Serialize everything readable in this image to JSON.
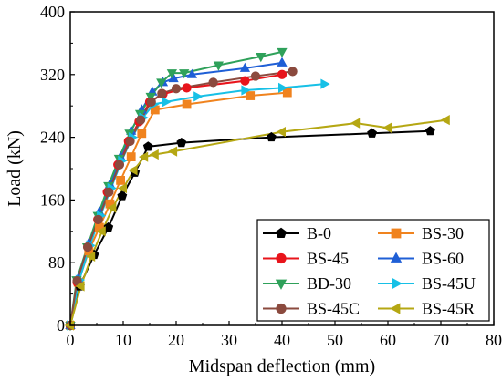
{
  "chart_data": {
    "type": "line",
    "xlabel": "Midspan deflection (mm)",
    "ylabel": "Load (kN)",
    "xlim": [
      0,
      80
    ],
    "ylim": [
      0,
      400
    ],
    "xticks": [
      0,
      10,
      20,
      30,
      40,
      50,
      60,
      70,
      80
    ],
    "yticks": [
      0,
      80,
      160,
      240,
      320,
      400
    ],
    "grid": false,
    "legend": "bottom-right, two columns",
    "series": [
      {
        "name": "B-0",
        "color": "#000000",
        "marker": "pentagon",
        "x": [
          0,
          1.8,
          4.5,
          7.2,
          9.8,
          12.2,
          14.7,
          21,
          38,
          57,
          68
        ],
        "y": [
          0,
          50,
          90,
          125,
          165,
          195,
          228,
          233,
          240,
          245,
          248
        ]
      },
      {
        "name": "BS-30",
        "color": "#f0831e",
        "marker": "square",
        "x": [
          0,
          1.5,
          3.5,
          5.5,
          7.5,
          9.5,
          11.5,
          13.5,
          16,
          22,
          34,
          41
        ],
        "y": [
          0,
          55,
          95,
          125,
          155,
          185,
          215,
          245,
          275,
          282,
          293,
          297
        ]
      },
      {
        "name": "BS-45",
        "color": "#e8141b",
        "marker": "circle",
        "x": [
          0,
          1.3,
          3.3,
          5.2,
          7.0,
          9.0,
          11.0,
          13.0,
          15.0,
          17.5,
          22,
          33,
          40
        ],
        "y": [
          0,
          55,
          100,
          135,
          170,
          205,
          235,
          260,
          285,
          295,
          303,
          312,
          320
        ]
      },
      {
        "name": "BS-60",
        "color": "#1f5fd6",
        "marker": "triangle-up",
        "x": [
          0,
          1.5,
          3.5,
          5.5,
          7.5,
          9.5,
          11.5,
          13.5,
          15.5,
          17.5,
          19.5,
          23,
          33,
          40
        ],
        "y": [
          0,
          60,
          105,
          145,
          180,
          215,
          248,
          275,
          298,
          310,
          315,
          320,
          328,
          335
        ]
      },
      {
        "name": "BD-30",
        "color": "#2fa15a",
        "marker": "triangle-down",
        "x": [
          0,
          1.2,
          3.2,
          5.2,
          7.2,
          9.2,
          11.2,
          13.2,
          15.2,
          17.2,
          19.2,
          21.5,
          28,
          36,
          40
        ],
        "y": [
          0,
          58,
          100,
          140,
          178,
          213,
          245,
          270,
          292,
          310,
          322,
          322,
          332,
          343,
          349
        ]
      },
      {
        "name": "BS-45U",
        "color": "#17c0e6",
        "marker": "triangle-right",
        "x": [
          0,
          1.7,
          3.7,
          5.7,
          7.7,
          9.7,
          11.7,
          13.7,
          15.7,
          18,
          24,
          33,
          40,
          48
        ],
        "y": [
          0,
          58,
          102,
          140,
          175,
          210,
          240,
          265,
          282,
          285,
          292,
          300,
          303,
          308
        ]
      },
      {
        "name": "BS-45C",
        "color": "#8b4a3e",
        "marker": "circle",
        "x": [
          0,
          1.3,
          3.3,
          5.3,
          7.3,
          9.3,
          11.3,
          13.3,
          15.3,
          17.3,
          20,
          27,
          35,
          42
        ],
        "y": [
          0,
          57,
          100,
          135,
          170,
          205,
          235,
          262,
          285,
          296,
          302,
          310,
          318,
          324
        ]
      },
      {
        "name": "BS-45R",
        "color": "#b5a713",
        "marker": "triangle-left",
        "x": [
          0,
          2.0,
          4.0,
          6.0,
          8.0,
          10.0,
          12.0,
          14.0,
          16.0,
          19.5,
          40,
          54,
          60,
          71
        ],
        "y": [
          0,
          50,
          88,
          120,
          150,
          175,
          198,
          215,
          218,
          222,
          247,
          258,
          252,
          262
        ]
      }
    ]
  },
  "legend_layout": {
    "col1": [
      "B-0",
      "BS-45",
      "BD-30",
      "BS-45C"
    ],
    "col2": [
      "BS-30",
      "BS-60",
      "BS-45U",
      "BS-45R"
    ]
  }
}
